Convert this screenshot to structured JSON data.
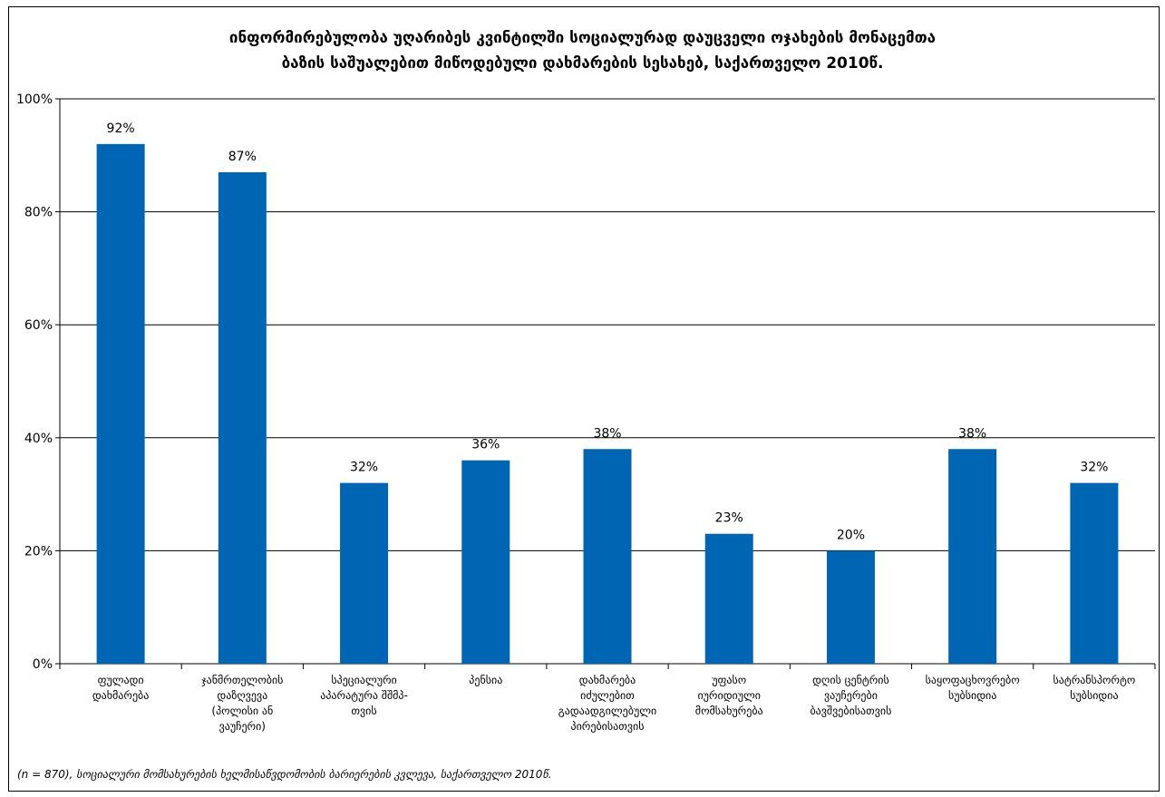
{
  "chart_data": {
    "type": "bar",
    "title_lines": [
      "ინფორმირებულობა  უღარიბეს კვინტილში სოციალურად დაუცველი ოჯახების მონაცემთა",
      "ბაზის საშუალებით მიწოდებული დახმარების სესახებ, საქართველო 2010წ."
    ],
    "categories": [
      [
        "ფულადი",
        "დახმარება"
      ],
      [
        "ჯანმრთელობის",
        "დაზღვევა",
        "(პოლისი ან",
        "ვაუჩერი)"
      ],
      [
        "სპეციალური",
        "აპარატურა შშმპ-",
        "თვის"
      ],
      [
        "პენსია"
      ],
      [
        "დახმარება",
        "იძულებით",
        "გადაადგილებული",
        "პირებისათვის"
      ],
      [
        "უფასო",
        "იურიდიული",
        "მომსახურება"
      ],
      [
        "დღის ცენტრის",
        "ვაუჩერები",
        "ბავშვებისათვის"
      ],
      [
        "საყოფაცხოვრებო",
        "სუბსიდია"
      ],
      [
        "სატრანსპორტო",
        "სუბსიდია"
      ]
    ],
    "values": [
      92,
      87,
      32,
      36,
      38,
      23,
      20,
      38,
      32
    ],
    "data_labels": [
      "92%",
      "87%",
      "32%",
      "36%",
      "38%",
      "23%",
      "20%",
      "38%",
      "32%"
    ],
    "y_ticks": [
      0,
      20,
      40,
      60,
      80,
      100
    ],
    "y_tick_labels": [
      "0%",
      "20%",
      "40%",
      "60%",
      "80%",
      "100%"
    ],
    "ylim": [
      0,
      100
    ],
    "grid": true,
    "legend": "none",
    "bar_color": "#0066B3"
  },
  "footnote": "(n = 870), სოციალური მომსახურების ხელმისაწვდომობის ბარიერების კვლევა, საქართველო 2010წ."
}
